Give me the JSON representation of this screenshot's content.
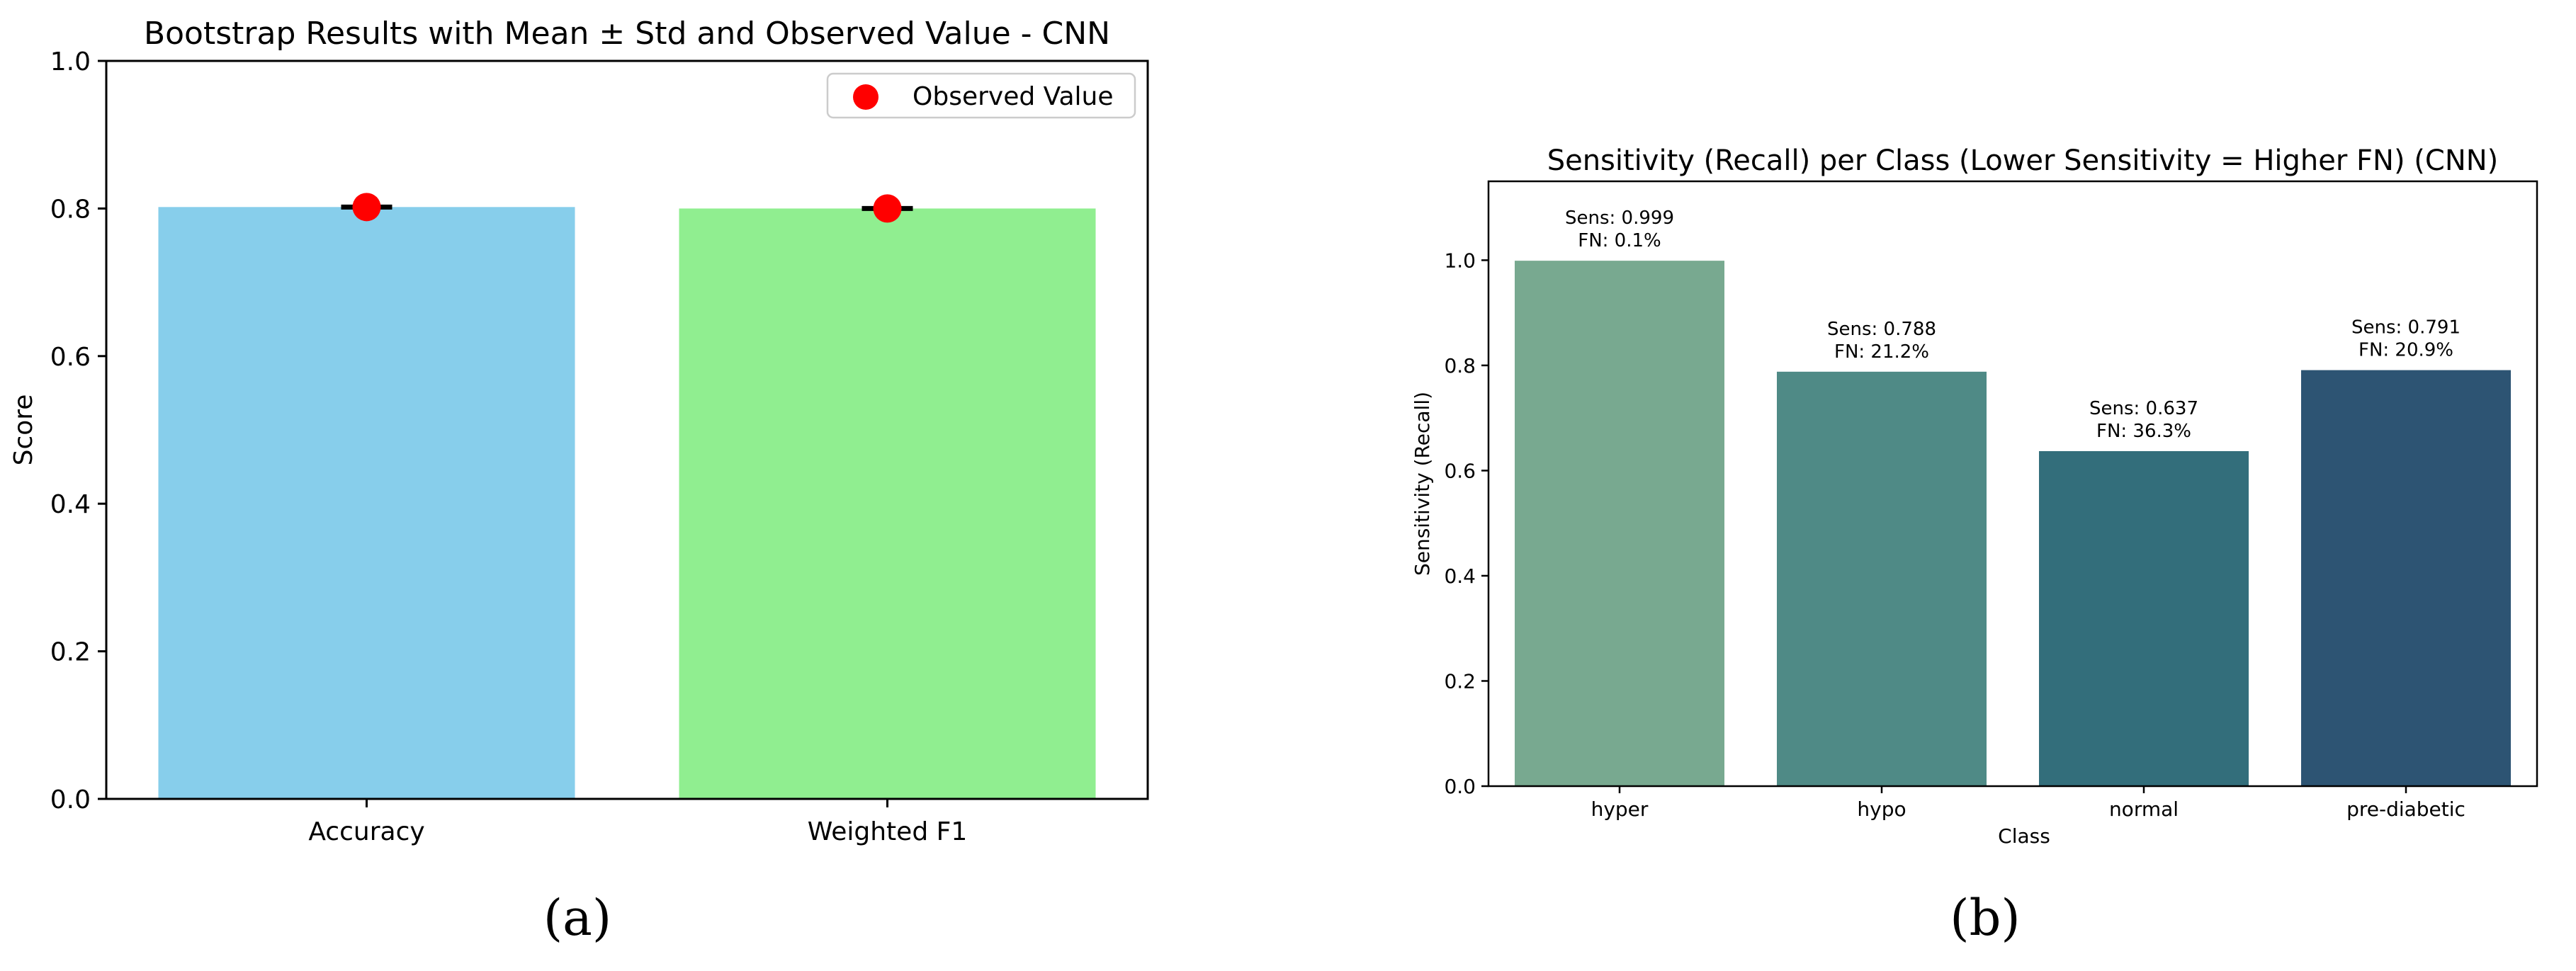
{
  "panels": {
    "a": {
      "sublabel": "(a)"
    },
    "b": {
      "sublabel": "(b)"
    }
  },
  "chart_data": [
    {
      "type": "bar",
      "title": "Bootstrap Results with Mean ± Std and Observed Value - CNN",
      "xlabel": "",
      "ylabel": "Score",
      "ylim": [
        0,
        1.0
      ],
      "yticks": [
        "0.0",
        "0.2",
        "0.4",
        "0.6",
        "0.8",
        "1.0"
      ],
      "categories": [
        "Accuracy",
        "Weighted F1"
      ],
      "values": [
        0.802,
        0.8
      ],
      "std": [
        0.004,
        0.004
      ],
      "observed": [
        0.802,
        0.8
      ],
      "bar_colors": [
        "#87ceeb",
        "#90ee90"
      ],
      "observed_color": "#ff0000",
      "errorbar_color": "#000000",
      "legend": {
        "position": "upper-right",
        "entries": [
          "Observed Value"
        ]
      },
      "grid": false
    },
    {
      "type": "bar",
      "title": "Sensitivity (Recall) per Class (Lower Sensitivity = Higher FN) (CNN)",
      "xlabel": "Class",
      "ylabel": "Sensitivity (Recall)",
      "ylim": [
        0,
        1.15
      ],
      "yticks": [
        "0.0",
        "0.2",
        "0.4",
        "0.6",
        "0.8",
        "1.0"
      ],
      "categories": [
        "hyper",
        "hypo",
        "normal",
        "pre-diabetic"
      ],
      "values": [
        0.999,
        0.788,
        0.637,
        0.791
      ],
      "bar_colors": [
        "#78a990",
        "#4f8a86",
        "#336e7b",
        "#2d5473"
      ],
      "annotations": [
        [
          "Sens: 0.999",
          "FN: 0.1%"
        ],
        [
          "Sens: 0.788",
          "FN: 21.2%"
        ],
        [
          "Sens: 0.637",
          "FN: 36.3%"
        ],
        [
          "Sens: 0.791",
          "FN: 20.9%"
        ]
      ],
      "grid": false
    }
  ]
}
